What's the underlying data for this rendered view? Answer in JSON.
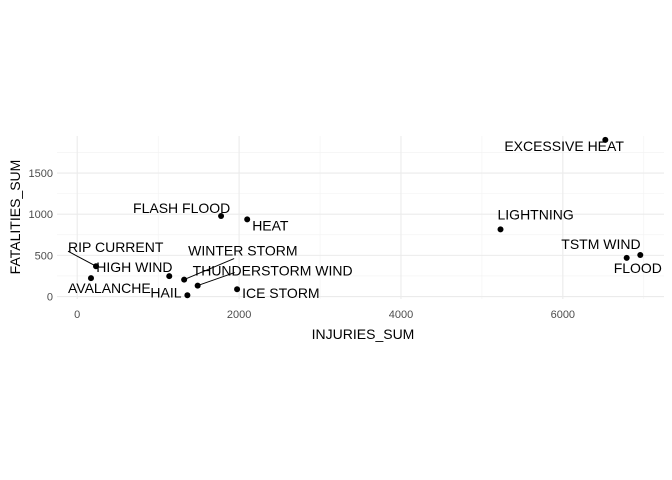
{
  "chart_data": {
    "type": "scatter",
    "xlabel": "INJURIES_SUM",
    "ylabel": "FATALITIES_SUM",
    "xlim": [
      -250,
      7250
    ],
    "ylim": [
      -30,
      1950
    ],
    "x_ticks": [
      0,
      2000,
      4000,
      6000
    ],
    "y_ticks": [
      0,
      500,
      1000,
      1500
    ],
    "grid": true,
    "point_color": "#000000",
    "points": [
      {
        "label": "EXCESSIVE HEAT",
        "x": 6525,
        "y": 1903
      },
      {
        "label": "FLASH FLOOD",
        "x": 1777,
        "y": 978
      },
      {
        "label": "HEAT",
        "x": 2100,
        "y": 937
      },
      {
        "label": "LIGHTNING",
        "x": 5230,
        "y": 816
      },
      {
        "label": "TSTM WIND",
        "x": 6957,
        "y": 504
      },
      {
        "label": "FLOOD",
        "x": 6789,
        "y": 470
      },
      {
        "label": "RIP CURRENT",
        "x": 232,
        "y": 368
      },
      {
        "label": "HIGH WIND",
        "x": 1137,
        "y": 248
      },
      {
        "label": "AVALANCHE",
        "x": 170,
        "y": 224
      },
      {
        "label": "WINTER STORM",
        "x": 1321,
        "y": 206
      },
      {
        "label": "THUNDERSTORM WIND",
        "x": 1488,
        "y": 133
      },
      {
        "label": "ICE STORM",
        "x": 1975,
        "y": 89
      },
      {
        "label": "HAIL",
        "x": 1361,
        "y": 15
      }
    ]
  }
}
